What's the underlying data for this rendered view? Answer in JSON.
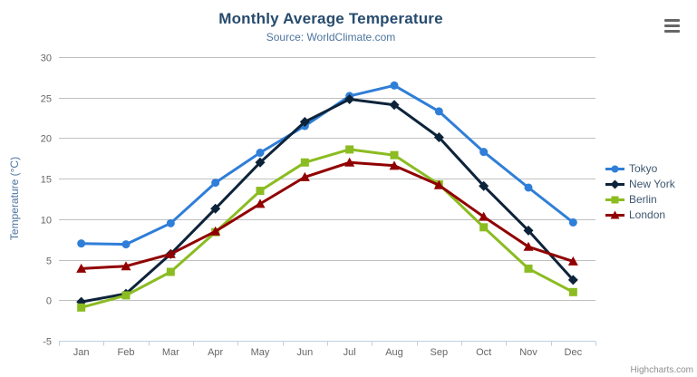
{
  "chart_data": {
    "type": "line",
    "title": "Monthly Average Temperature",
    "subtitle": "Source: WorldClimate.com",
    "categories": [
      "Jan",
      "Feb",
      "Mar",
      "Apr",
      "May",
      "Jun",
      "Jul",
      "Aug",
      "Sep",
      "Oct",
      "Nov",
      "Dec"
    ],
    "series": [
      {
        "name": "Tokyo",
        "color": "#2f7ed8",
        "marker": "circle",
        "values": [
          7.0,
          6.9,
          9.5,
          14.5,
          18.2,
          21.5,
          25.2,
          26.5,
          23.3,
          18.3,
          13.9,
          9.6
        ]
      },
      {
        "name": "New York",
        "color": "#0d233a",
        "marker": "diamond",
        "values": [
          -0.2,
          0.8,
          5.7,
          11.3,
          17.0,
          22.0,
          24.8,
          24.1,
          20.1,
          14.1,
          8.6,
          2.5
        ]
      },
      {
        "name": "Berlin",
        "color": "#8bbc21",
        "marker": "square",
        "values": [
          -0.9,
          0.6,
          3.5,
          8.4,
          13.5,
          17.0,
          18.6,
          17.9,
          14.3,
          9.0,
          3.9,
          1.0
        ]
      },
      {
        "name": "London",
        "color": "#910000",
        "marker": "triangle",
        "values": [
          3.9,
          4.2,
          5.7,
          8.5,
          11.9,
          15.2,
          17.0,
          16.6,
          14.2,
          10.3,
          6.6,
          4.8
        ]
      }
    ],
    "xlabel": "",
    "ylabel": "Temperature (°C)",
    "ylim": [
      -5,
      30
    ],
    "ytick_step": 5,
    "yticks": [
      -5,
      0,
      5,
      10,
      15,
      20,
      25,
      30
    ],
    "grid": "horizontal",
    "legend_position": "right",
    "axis_colors": {
      "grid_line": "#C0C0C0",
      "axis_line": "#C0D0E0",
      "tick_label": "#666666"
    }
  },
  "credits": {
    "label": "Highcharts.com"
  }
}
